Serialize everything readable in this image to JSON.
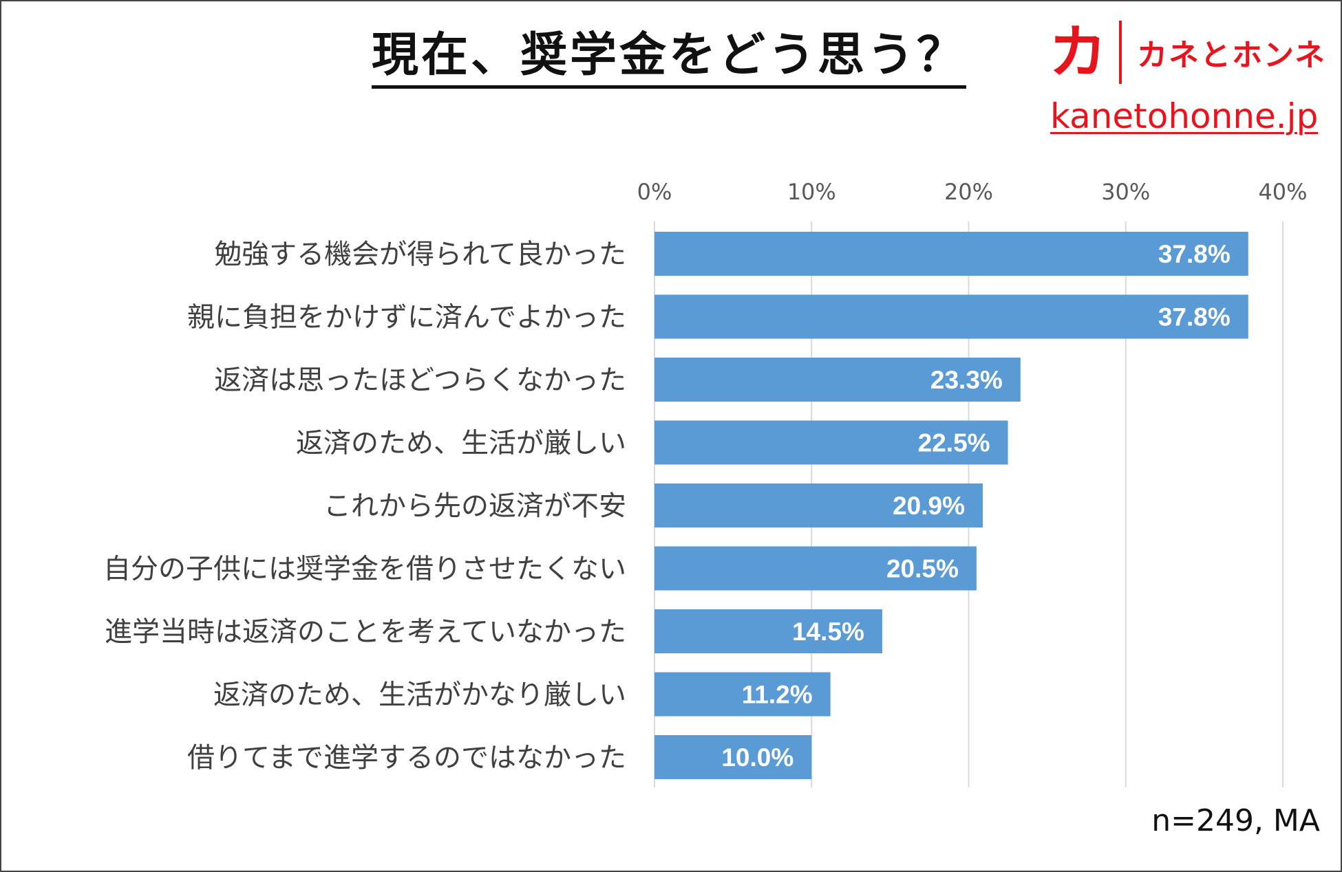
{
  "header": {
    "title": "現在、奨学金をどう思う？"
  },
  "brand": {
    "mark": "カ",
    "name": "カネとホンネ",
    "url": "kanetohonne.jp",
    "color": "#e8141d"
  },
  "chart_data": {
    "type": "bar",
    "orientation": "horizontal",
    "title": "現在、奨学金をどう思う？",
    "xlabel": "",
    "ylabel": "",
    "xlim": [
      0,
      40
    ],
    "x_ticks": [
      0,
      10,
      20,
      30,
      40
    ],
    "tick_suffix": "%",
    "grid": true,
    "categories": [
      "勉強する機会が得られて良かった",
      "親に負担をかけずに済んでよかった",
      "返済は思ったほどつらくなかった",
      "返済のため、生活が厳しい",
      "これから先の返済が不安",
      "自分の子供には奨学金を借りさせたくない",
      "進学当時は返済のことを考えていなかった",
      "返済のため、生活がかなり厳しい",
      "借りてまで進学するのではなかった"
    ],
    "values": [
      37.8,
      37.8,
      23.3,
      22.5,
      20.9,
      20.5,
      14.5,
      11.2,
      10.0
    ],
    "value_labels": [
      "37.8%",
      "37.8%",
      "23.3%",
      "22.5%",
      "20.9%",
      "20.5%",
      "14.5%",
      "11.2%",
      "10.0%"
    ],
    "bar_color": "#5b9bd5",
    "label_color": "#ffffff"
  },
  "footnote": "n=249, MA"
}
